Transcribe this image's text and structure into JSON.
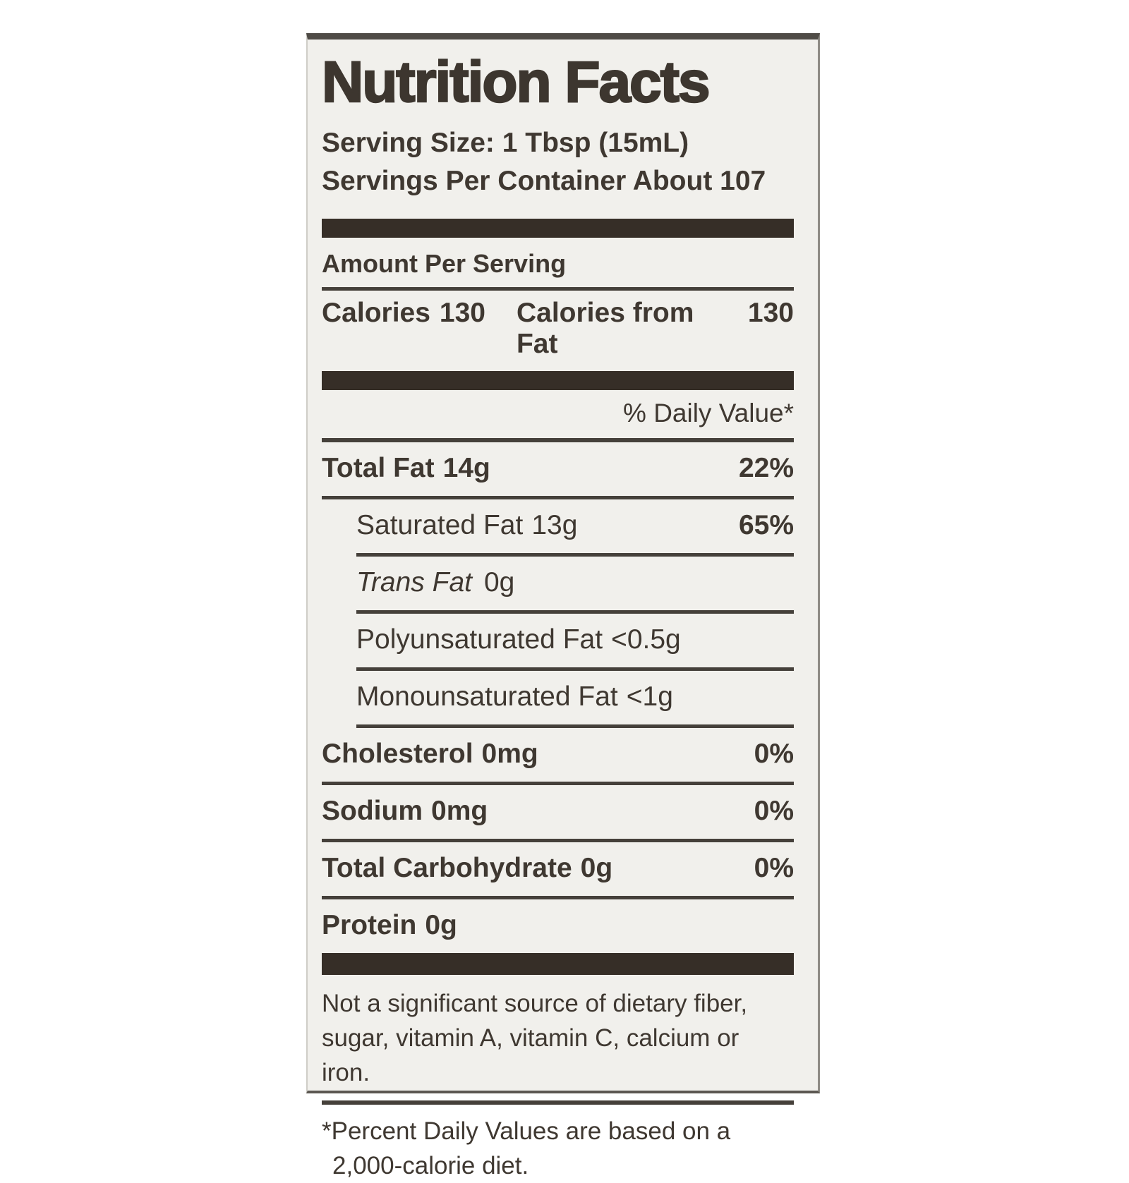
{
  "label": {
    "title": "Nutrition Facts",
    "serving_size": "Serving Size: 1 Tbsp (15mL)",
    "servings_per_container": "Servings Per Container About 107",
    "amount_per_serving": "Amount Per Serving",
    "calories": {
      "label": "Calories",
      "value": "130",
      "from_fat_label": "Calories from Fat",
      "from_fat_value": "130"
    },
    "daily_value_header": "% Daily Value*",
    "rows": [
      {
        "label": "Total Fat",
        "amount": "14g",
        "dv": "22%"
      },
      {
        "label": "Saturated Fat",
        "amount": "13g",
        "dv": "65%"
      },
      {
        "label": "Trans Fat",
        "amount": "0g",
        "dv": ""
      },
      {
        "label": "Polyunsaturated Fat",
        "amount": "<0.5g",
        "dv": ""
      },
      {
        "label": "Monounsaturated Fat",
        "amount": "<1g",
        "dv": ""
      },
      {
        "label": "Cholesterol",
        "amount": "0mg",
        "dv": "0%"
      },
      {
        "label": "Sodium",
        "amount": "0mg",
        "dv": "0%"
      },
      {
        "label": "Total Carbohydrate",
        "amount": "0g",
        "dv": "0%"
      },
      {
        "label": "Protein",
        "amount": "0g",
        "dv": ""
      }
    ],
    "significant_note": {
      "line1": "Not a significant source of dietary fiber,",
      "line2": "sugar, vitamin A, vitamin C, calcium or iron."
    },
    "daily_value_note": {
      "line1": "*Percent Daily Values are based on a",
      "line2": "2,000-calorie diet."
    }
  },
  "colors": {
    "label_background": "#f1f0ec",
    "text": "#3f3831",
    "bar": "#362e27",
    "page_background": "#ffffff"
  }
}
